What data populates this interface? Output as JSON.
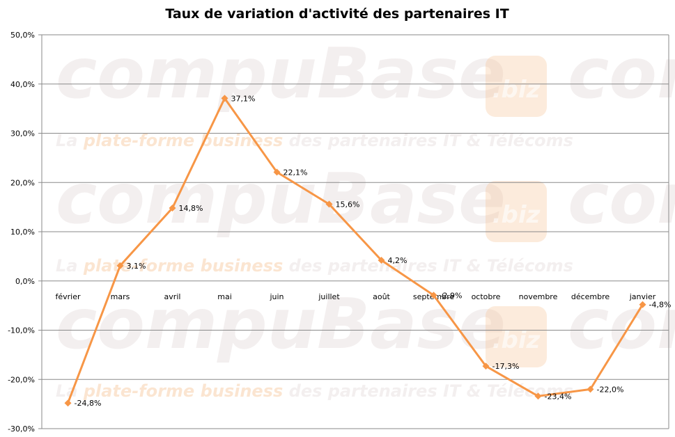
{
  "chart_data": {
    "type": "line",
    "title": "Taux de variation d'activité des partenaires IT",
    "xlabel": "",
    "ylabel": "",
    "ylim": [
      -30,
      50
    ],
    "yticks": [
      {
        "value": 50,
        "label": "50,0%"
      },
      {
        "value": 40,
        "label": "40,0%"
      },
      {
        "value": 30,
        "label": "30,0%"
      },
      {
        "value": 20,
        "label": "20,0%"
      },
      {
        "value": 10,
        "label": "10,0%"
      },
      {
        "value": 0,
        "label": "0,0%"
      },
      {
        "value": -10,
        "label": "-10,0%"
      },
      {
        "value": -20,
        "label": "-20,0%"
      },
      {
        "value": -30,
        "label": "-30,0%"
      }
    ],
    "grid": true,
    "legend": "none",
    "categories": [
      "février",
      "mars",
      "avril",
      "mai",
      "juin",
      "juillet",
      "août",
      "septembre",
      "octobre",
      "novembre",
      "décembre",
      "janvier"
    ],
    "series": [
      {
        "values": [
          -24.8,
          3.1,
          14.8,
          37.1,
          22.1,
          15.6,
          4.2,
          -2.9,
          -17.3,
          -23.4,
          -22.0,
          -4.8
        ],
        "labels": [
          "-24,8%",
          "3,1%",
          "14,8%",
          "37,1%",
          "22,1%",
          "15,6%",
          "4,2%",
          "-2,9%",
          "-17,3%",
          "-23,4%",
          "-22,0%",
          "-4,8%"
        ],
        "color": "#f79646",
        "marker": "diamond"
      }
    ]
  },
  "watermark": {
    "brand": "compuBase",
    "badge": ".biz",
    "tagline_prefix": "La ",
    "tagline_accent": "plate-forme business",
    "tagline_suffix": " des partenaires IT & Télécoms",
    "brand_color": "#e5dcdc",
    "accent_color": "#f7c79a"
  }
}
